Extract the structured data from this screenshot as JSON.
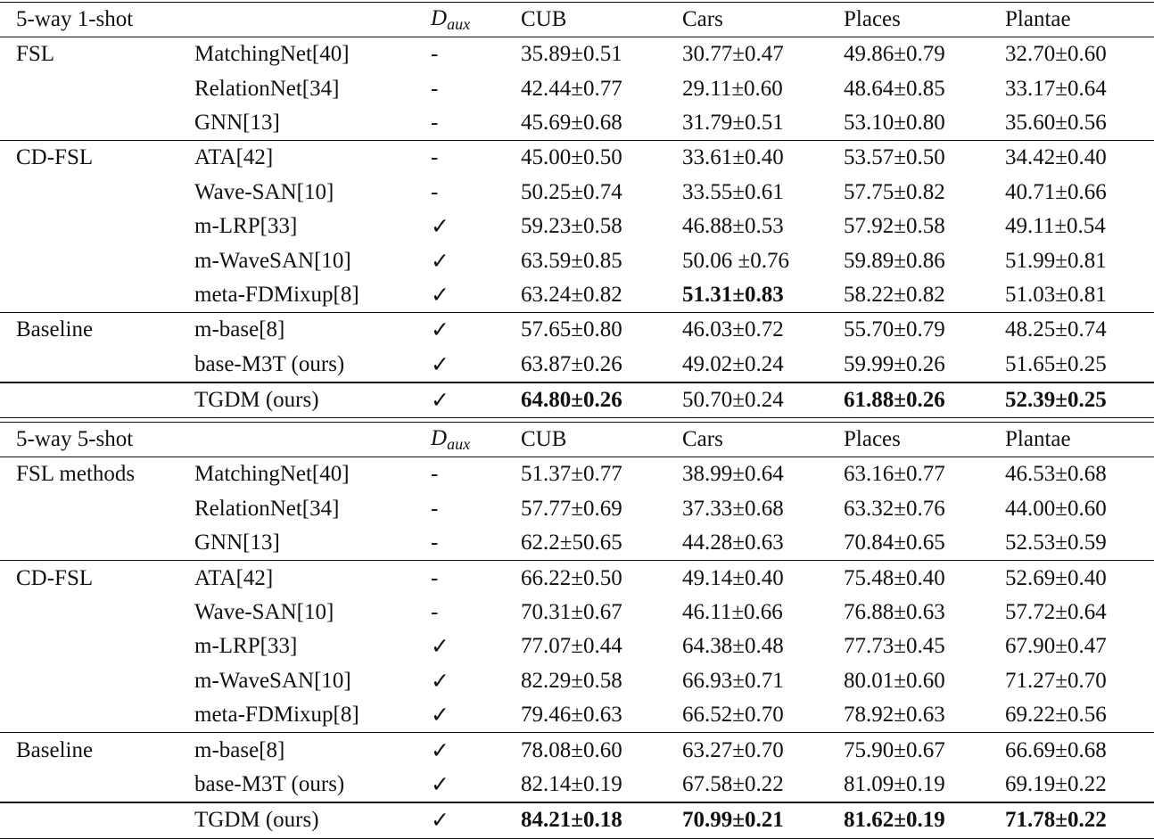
{
  "sections": [
    {
      "title": "5-way 1-shot",
      "daux": {
        "base": "D",
        "sub": "aux"
      },
      "columns": [
        "CUB",
        "Cars",
        "Places",
        "Plantae"
      ],
      "groups": [
        {
          "name": "FSL",
          "rows": [
            {
              "method": "MatchingNet[40]",
              "daux": "-",
              "values": [
                "35.89±0.51",
                "30.77±0.47",
                "49.86±0.79",
                "32.70±0.60"
              ],
              "bold": [
                false,
                false,
                false,
                false
              ]
            },
            {
              "method": "RelationNet[34]",
              "daux": "-",
              "values": [
                "42.44±0.77",
                "29.11±0.60",
                "48.64±0.85",
                "33.17±0.64"
              ],
              "bold": [
                false,
                false,
                false,
                false
              ]
            },
            {
              "method": "GNN[13]",
              "daux": "-",
              "values": [
                "45.69±0.68",
                "31.79±0.51",
                "53.10±0.80",
                "35.60±0.56"
              ],
              "bold": [
                false,
                false,
                false,
                false
              ]
            }
          ]
        },
        {
          "name": "CD-FSL",
          "rows": [
            {
              "method": "ATA[42]",
              "daux": "-",
              "values": [
                "45.00±0.50",
                "33.61±0.40",
                "53.57±0.50",
                "34.42±0.40"
              ],
              "bold": [
                false,
                false,
                false,
                false
              ]
            },
            {
              "method": "Wave-SAN[10]",
              "daux": "-",
              "values": [
                "50.25±0.74",
                "33.55±0.61",
                "57.75±0.82",
                "40.71±0.66"
              ],
              "bold": [
                false,
                false,
                false,
                false
              ]
            },
            {
              "method": "m-LRP[33]",
              "daux": "✓",
              "values": [
                "59.23±0.58",
                "46.88±0.53",
                "57.92±0.58",
                "49.11±0.54"
              ],
              "bold": [
                false,
                false,
                false,
                false
              ]
            },
            {
              "method": "m-WaveSAN[10]",
              "daux": "✓",
              "values": [
                "63.59±0.85",
                "50.06 ±0.76",
                "59.89±0.86",
                "51.99±0.81"
              ],
              "bold": [
                false,
                false,
                false,
                false
              ]
            },
            {
              "method": "meta-FDMixup[8]",
              "daux": "✓",
              "values": [
                "63.24±0.82",
                "51.31±0.83",
                "58.22±0.82",
                "51.03±0.81"
              ],
              "bold": [
                false,
                true,
                false,
                false
              ]
            }
          ]
        },
        {
          "name": "Baseline",
          "rows": [
            {
              "method": "m-base[8]",
              "daux": "✓",
              "values": [
                "57.65±0.80",
                "46.03±0.72",
                "55.70±0.79",
                "48.25±0.74"
              ],
              "bold": [
                false,
                false,
                false,
                false
              ]
            },
            {
              "method": "base-M3T (ours)",
              "daux": "✓",
              "values": [
                "63.87±0.26",
                "49.02±0.24",
                "59.99±0.26",
                "51.65±0.25"
              ],
              "bold": [
                false,
                false,
                false,
                false
              ]
            }
          ]
        },
        {
          "name": "",
          "rows": [
            {
              "method": "TGDM (ours)",
              "daux": "✓",
              "values": [
                "64.80±0.26",
                "50.70±0.24",
                "61.88±0.26",
                "52.39±0.25"
              ],
              "bold": [
                true,
                false,
                true,
                true
              ]
            }
          ]
        }
      ]
    },
    {
      "title": "5-way 5-shot",
      "daux": {
        "base": "D",
        "sub": "aux"
      },
      "columns": [
        "CUB",
        "Cars",
        "Places",
        "Plantae"
      ],
      "groups": [
        {
          "name": "FSL methods",
          "rows": [
            {
              "method": "MatchingNet[40]",
              "daux": "-",
              "values": [
                "51.37±0.77",
                "38.99±0.64",
                "63.16±0.77",
                "46.53±0.68"
              ],
              "bold": [
                false,
                false,
                false,
                false
              ]
            },
            {
              "method": "RelationNet[34]",
              "daux": "-",
              "values": [
                "57.77±0.69",
                "37.33±0.68",
                "63.32±0.76",
                "44.00±0.60"
              ],
              "bold": [
                false,
                false,
                false,
                false
              ]
            },
            {
              "method": "GNN[13]",
              "daux": "-",
              "values": [
                "62.2±50.65",
                "44.28±0.63",
                "70.84±0.65",
                "52.53±0.59"
              ],
              "bold": [
                false,
                false,
                false,
                false
              ]
            }
          ]
        },
        {
          "name": "CD-FSL",
          "rows": [
            {
              "method": "ATA[42]",
              "daux": "-",
              "values": [
                "66.22±0.50",
                "49.14±0.40",
                "75.48±0.40",
                "52.69±0.40"
              ],
              "bold": [
                false,
                false,
                false,
                false
              ]
            },
            {
              "method": "Wave-SAN[10]",
              "daux": "-",
              "values": [
                "70.31±0.67",
                "46.11±0.66",
                "76.88±0.63",
                "57.72±0.64"
              ],
              "bold": [
                false,
                false,
                false,
                false
              ]
            },
            {
              "method": "m-LRP[33]",
              "daux": "✓",
              "values": [
                "77.07±0.44",
                "64.38±0.48",
                "77.73±0.45",
                "67.90±0.47"
              ],
              "bold": [
                false,
                false,
                false,
                false
              ]
            },
            {
              "method": "m-WaveSAN[10]",
              "daux": "✓",
              "values": [
                "82.29±0.58",
                "66.93±0.71",
                "80.01±0.60",
                "71.27±0.70"
              ],
              "bold": [
                false,
                false,
                false,
                false
              ]
            },
            {
              "method": "meta-FDMixup[8]",
              "daux": "✓",
              "values": [
                "79.46±0.63",
                "66.52±0.70",
                "78.92±0.63",
                "69.22±0.56"
              ],
              "bold": [
                false,
                false,
                false,
                false
              ]
            }
          ]
        },
        {
          "name": "Baseline",
          "rows": [
            {
              "method": "m-base[8]",
              "daux": "✓",
              "values": [
                "78.08±0.60",
                "63.27±0.70",
                "75.90±0.67",
                "66.69±0.68"
              ],
              "bold": [
                false,
                false,
                false,
                false
              ]
            },
            {
              "method": "base-M3T (ours)",
              "daux": "✓",
              "values": [
                "82.14±0.19",
                "67.58±0.22",
                "81.09±0.19",
                "69.19±0.22"
              ],
              "bold": [
                false,
                false,
                false,
                false
              ]
            }
          ]
        },
        {
          "name": "",
          "rows": [
            {
              "method": "TGDM (ours)",
              "daux": "✓",
              "values": [
                "84.21±0.18",
                "70.99±0.21",
                "81.62±0.19",
                "71.78±0.22"
              ],
              "bold": [
                true,
                true,
                true,
                true
              ]
            }
          ]
        }
      ]
    }
  ]
}
